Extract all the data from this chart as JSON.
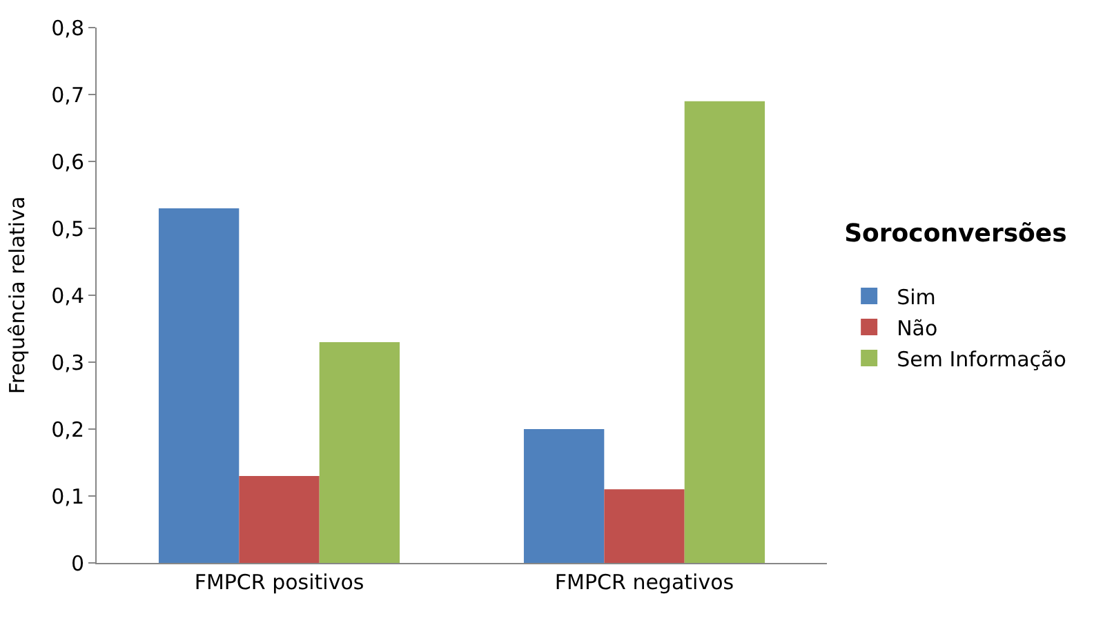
{
  "chart_data": {
    "type": "bar",
    "ylabel": "Frequência relativa",
    "legend_title": "Soroconversões",
    "categories": [
      "FMPCR positivos",
      "FMPCR negativos"
    ],
    "series": [
      {
        "name": "Sim",
        "color": "#4f81bd",
        "values": [
          0.53,
          0.2
        ]
      },
      {
        "name": "Não",
        "color": "#c0504d",
        "values": [
          0.13,
          0.11
        ]
      },
      {
        "name": "Sem Informação",
        "color": "#9bbb59",
        "values": [
          0.33,
          0.69
        ]
      }
    ],
    "ylim": [
      0,
      0.8
    ],
    "yticks": [
      0,
      {
        "value": 0.1,
        "label": "0,1"
      },
      {
        "value": 0.2,
        "label": "0,2"
      },
      {
        "value": 0.3,
        "label": "0,3"
      },
      {
        "value": 0.4,
        "label": "0,4"
      },
      {
        "value": 0.5,
        "label": "0,5"
      },
      {
        "value": 0.6,
        "label": "0,6"
      },
      {
        "value": 0.7,
        "label": "0,7"
      },
      {
        "value": 0.8,
        "label": "0,8"
      }
    ],
    "grid": false,
    "legend": "right"
  }
}
